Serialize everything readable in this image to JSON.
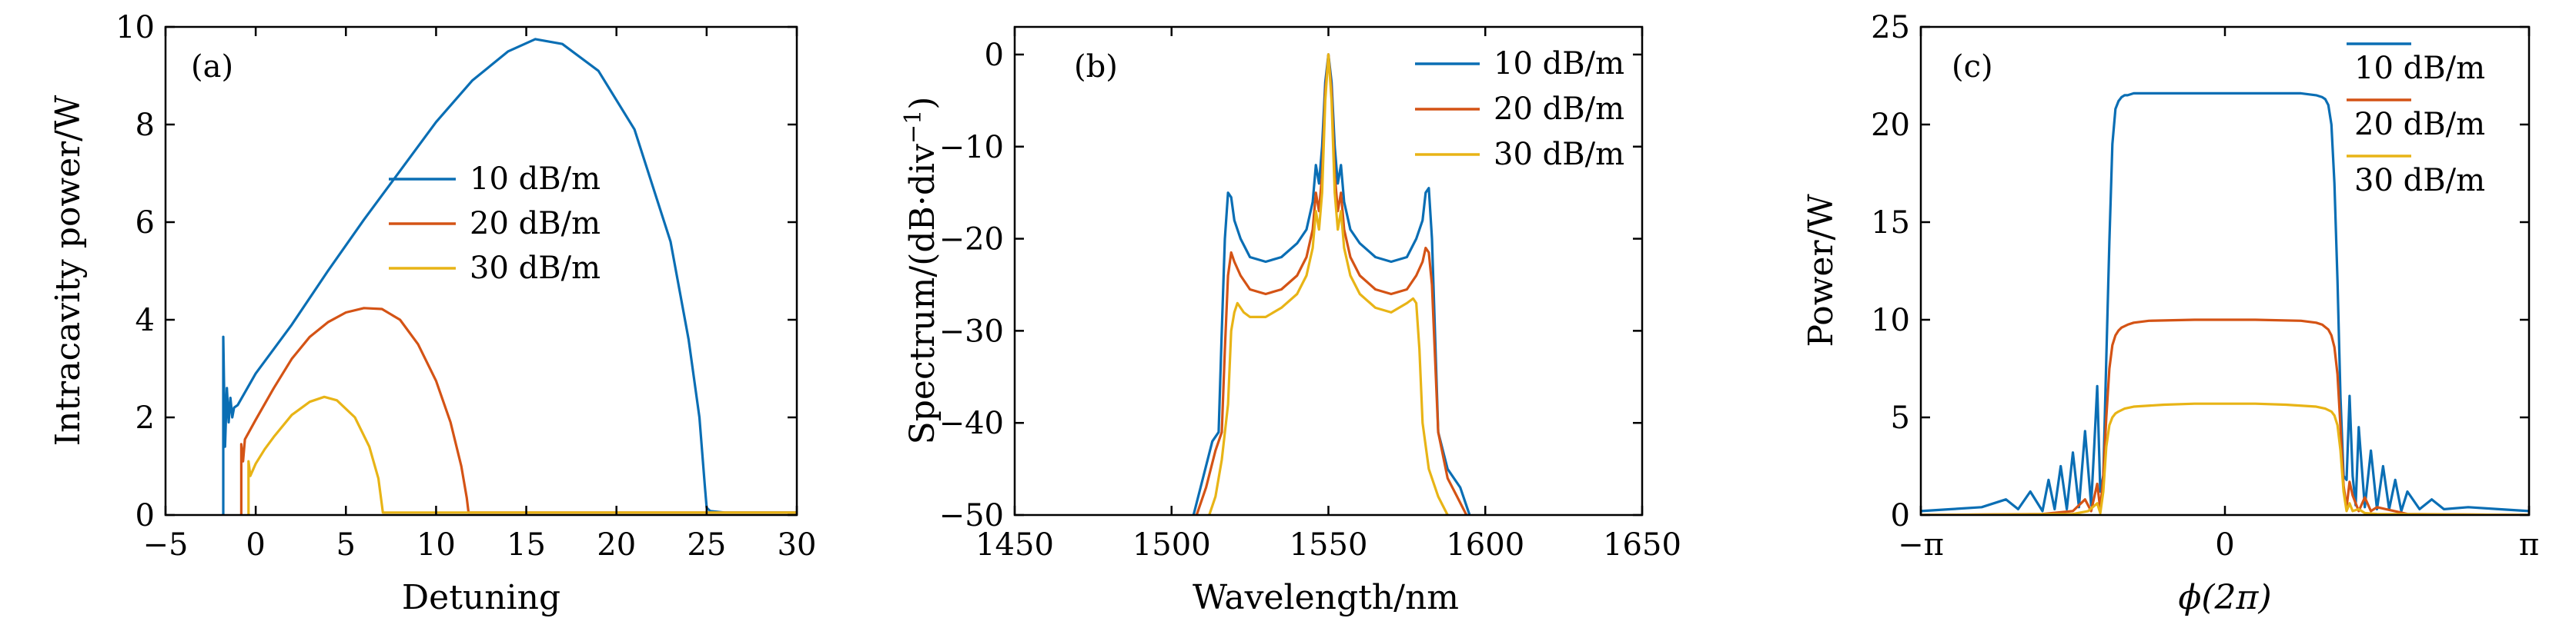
{
  "colors": {
    "s10": "#0a6eb4",
    "s20": "#d45315",
    "s30": "#e8b416"
  },
  "chart_data": [
    {
      "type": "line",
      "panel_label": "(a)",
      "xlabel": "Detuning",
      "ylabel": "Intracavity power/W",
      "xlim": [
        -5,
        30
      ],
      "ylim": [
        0,
        10
      ],
      "xticks": [
        -5,
        0,
        5,
        10,
        15,
        20,
        25,
        30
      ],
      "xtick_labels": [
        "−5",
        "0",
        "5",
        "10",
        "15",
        "20",
        "25",
        "30"
      ],
      "yticks": [
        0,
        2,
        4,
        6,
        8,
        10
      ],
      "ytick_labels": [
        "0",
        "2",
        "4",
        "6",
        "8",
        "10"
      ],
      "legend_placement": "center",
      "series": [
        {
          "name": "10 dB/m",
          "color_key": "s10",
          "x": [
            -1.8,
            -1.8,
            -1.7,
            -1.6,
            -1.5,
            -1.4,
            -1.3,
            -1.2,
            -1.0,
            0,
            2,
            4,
            6,
            8,
            10,
            12,
            14,
            15.5,
            17,
            19,
            21,
            23,
            24,
            24.6,
            24.9,
            25.0,
            25.2,
            26,
            30
          ],
          "y": [
            0,
            3.65,
            1.4,
            2.6,
            1.9,
            2.4,
            2.0,
            2.2,
            2.25,
            2.9,
            3.9,
            5.0,
            6.05,
            7.05,
            8.05,
            8.9,
            9.5,
            9.75,
            9.65,
            9.1,
            7.9,
            5.6,
            3.6,
            2.0,
            0.6,
            0.15,
            0.08,
            0.05,
            0.05
          ]
        },
        {
          "name": "20 dB/m",
          "color_key": "s20",
          "x": [
            -0.8,
            -0.8,
            -0.7,
            -0.6,
            0,
            1,
            2,
            3,
            4,
            5,
            6,
            7,
            8,
            9,
            10,
            10.8,
            11.4,
            11.7,
            11.8,
            12,
            30
          ],
          "y": [
            0,
            1.45,
            1.1,
            1.55,
            1.95,
            2.6,
            3.2,
            3.65,
            3.95,
            4.15,
            4.24,
            4.22,
            4.0,
            3.5,
            2.75,
            1.9,
            1.0,
            0.35,
            0.05,
            0.05,
            0.05
          ]
        },
        {
          "name": "30 dB/m",
          "color_key": "s30",
          "x": [
            -0.4,
            -0.4,
            -0.3,
            0,
            0.5,
            1,
            2,
            3,
            3.8,
            4.5,
            5.5,
            6.3,
            6.8,
            7.0,
            7.05,
            10,
            30
          ],
          "y": [
            0,
            1.1,
            0.8,
            1.05,
            1.35,
            1.6,
            2.05,
            2.32,
            2.42,
            2.35,
            2.0,
            1.4,
            0.75,
            0.2,
            0.05,
            0.05,
            0.05
          ]
        }
      ]
    },
    {
      "type": "line",
      "panel_label": "(b)",
      "xlabel": "Wavelength/nm",
      "ylabel": "Spectrum/(dB·div",
      "ylabel_superscript": "−1",
      "ylabel_close": ")",
      "xlim": [
        1450,
        1650
      ],
      "ylim": [
        -50,
        3
      ],
      "xticks": [
        1450,
        1500,
        1550,
        1600,
        1650
      ],
      "xtick_labels": [
        "1450",
        "1500",
        "1550",
        "1600",
        "1650"
      ],
      "yticks": [
        -50,
        -40,
        -30,
        -20,
        -10,
        0
      ],
      "ytick_labels": [
        "−50",
        "−40",
        "−30",
        "−20",
        "−10",
        "0"
      ],
      "legend_placement": "top-right",
      "series": [
        {
          "name": "10 dB/m",
          "color_key": "s10",
          "x": [
            1507,
            1510,
            1513,
            1515,
            1516,
            1517,
            1518,
            1519,
            1520,
            1522,
            1525,
            1530,
            1535,
            1540,
            1543,
            1545,
            1546,
            1547,
            1548,
            1549,
            1550,
            1551,
            1552,
            1553,
            1554,
            1555,
            1557,
            1560,
            1565,
            1570,
            1575,
            1578,
            1580,
            1581,
            1582,
            1583,
            1585,
            1588,
            1592,
            1595
          ],
          "y": [
            -50,
            -46,
            -42,
            -41,
            -30,
            -20,
            -15,
            -15.5,
            -18,
            -20,
            -22,
            -22.5,
            -22,
            -20.5,
            -19,
            -16,
            -12,
            -14,
            -10,
            -3,
            0,
            -3,
            -10,
            -14,
            -12,
            -16,
            -19,
            -20.5,
            -22,
            -22.5,
            -22,
            -20,
            -18,
            -15,
            -14.5,
            -20,
            -41,
            -45,
            -47,
            -50
          ]
        },
        {
          "name": "20 dB/m",
          "color_key": "s20",
          "x": [
            1508,
            1511,
            1514,
            1516,
            1517,
            1518,
            1519,
            1520,
            1522,
            1525,
            1530,
            1535,
            1540,
            1543,
            1545,
            1546,
            1547,
            1548,
            1549,
            1550,
            1551,
            1552,
            1553,
            1554,
            1555,
            1557,
            1560,
            1565,
            1570,
            1575,
            1578,
            1580,
            1581,
            1582,
            1583,
            1585,
            1588,
            1591,
            1594
          ],
          "y": [
            -50,
            -47,
            -43,
            -41,
            -32,
            -24,
            -21.5,
            -22.5,
            -24,
            -25.5,
            -26,
            -25.5,
            -24,
            -22,
            -19,
            -15,
            -17,
            -13,
            -4,
            0,
            -4,
            -13,
            -17,
            -15,
            -19,
            -22,
            -24,
            -25.5,
            -26,
            -25.5,
            -24,
            -22.5,
            -21,
            -21.5,
            -25,
            -41,
            -46,
            -48,
            -50
          ]
        },
        {
          "name": "30 dB/m",
          "color_key": "s30",
          "x": [
            1512,
            1514,
            1516,
            1518,
            1519,
            1520,
            1521,
            1523,
            1525,
            1530,
            1535,
            1540,
            1543,
            1545,
            1546,
            1547,
            1548,
            1549,
            1550,
            1551,
            1552,
            1553,
            1554,
            1555,
            1557,
            1560,
            1565,
            1570,
            1575,
            1577,
            1578,
            1579,
            1580,
            1582,
            1585,
            1588
          ],
          "y": [
            -50,
            -48,
            -44,
            -38,
            -30,
            -28,
            -27,
            -28,
            -28.5,
            -28.5,
            -27.5,
            -26,
            -24,
            -21,
            -17,
            -19,
            -15,
            -5,
            0,
            -5,
            -15,
            -19,
            -17,
            -21,
            -24,
            -26,
            -27.5,
            -28,
            -27,
            -26.5,
            -27,
            -32,
            -40,
            -45,
            -48,
            -50
          ]
        }
      ]
    },
    {
      "type": "line",
      "panel_label": "(c)",
      "xlabel": "ϕ(2π)",
      "ylabel": "Power/W",
      "xlim": [
        -1,
        1
      ],
      "ylim": [
        0,
        25
      ],
      "xticks": [
        -1,
        0,
        1
      ],
      "xtick_labels": [
        "−π",
        "0",
        "π"
      ],
      "yticks": [
        0,
        5,
        10,
        15,
        20,
        25
      ],
      "ytick_labels": [
        "0",
        "5",
        "10",
        "15",
        "20",
        "25"
      ],
      "legend_placement": "top-right",
      "series": [
        {
          "name": "10 dB/m",
          "color_key": "s10",
          "x": [
            -1,
            -0.9,
            -0.8,
            -0.72,
            -0.68,
            -0.64,
            -0.6,
            -0.58,
            -0.56,
            -0.54,
            -0.52,
            -0.5,
            -0.48,
            -0.46,
            -0.44,
            -0.43,
            -0.42,
            -0.41,
            -0.4,
            -0.39,
            -0.38,
            -0.37,
            -0.36,
            -0.35,
            -0.34,
            -0.33,
            -0.32,
            -0.3,
            -0.25,
            -0.15,
            0,
            0.15,
            0.25,
            0.3,
            0.32,
            0.33,
            0.34,
            0.35,
            0.36,
            0.37,
            0.38,
            0.39,
            0.4,
            0.41,
            0.42,
            0.43,
            0.44,
            0.46,
            0.48,
            0.5,
            0.52,
            0.54,
            0.56,
            0.58,
            0.6,
            0.64,
            0.68,
            0.72,
            0.8,
            0.9,
            1
          ],
          "y": [
            0.2,
            0.3,
            0.4,
            0.8,
            0.3,
            1.2,
            0.2,
            1.8,
            0.3,
            2.5,
            0.3,
            3.2,
            0.4,
            4.3,
            0.5,
            3.5,
            6.6,
            1.2,
            2,
            8,
            14,
            19,
            20.8,
            21.2,
            21.4,
            21.5,
            21.5,
            21.6,
            21.6,
            21.6,
            21.6,
            21.6,
            21.6,
            21.5,
            21.4,
            21.3,
            21,
            20,
            17,
            12,
            6,
            2,
            1.8,
            6.1,
            2,
            0.5,
            4.5,
            0.4,
            3.3,
            0.3,
            2.5,
            0.3,
            1.8,
            0.2,
            1.2,
            0.3,
            0.8,
            0.3,
            0.4,
            0.3,
            0.2
          ]
        },
        {
          "name": "20 dB/m",
          "color_key": "s20",
          "x": [
            -1,
            -0.6,
            -0.5,
            -0.46,
            -0.44,
            -0.42,
            -0.41,
            -0.4,
            -0.39,
            -0.38,
            -0.37,
            -0.36,
            -0.35,
            -0.34,
            -0.32,
            -0.3,
            -0.25,
            -0.1,
            0,
            0.1,
            0.25,
            0.3,
            0.32,
            0.34,
            0.35,
            0.36,
            0.37,
            0.38,
            0.39,
            0.4,
            0.41,
            0.42,
            0.44,
            0.46,
            0.48,
            0.5,
            0.6,
            1
          ],
          "y": [
            0,
            0.05,
            0.2,
            0.8,
            0.2,
            1.6,
            0.3,
            2,
            5,
            7.5,
            8.7,
            9.2,
            9.45,
            9.6,
            9.75,
            9.85,
            9.95,
            10,
            10,
            10,
            9.95,
            9.85,
            9.75,
            9.5,
            9.2,
            8.6,
            7.2,
            4.5,
            1.5,
            0.4,
            1.7,
            1.0,
            0.2,
            0.9,
            0.2,
            0.4,
            0.05,
            0
          ]
        },
        {
          "name": "30 dB/m",
          "color_key": "s30",
          "x": [
            -1,
            -0.5,
            -0.45,
            -0.42,
            -0.41,
            -0.4,
            -0.39,
            -0.38,
            -0.37,
            -0.36,
            -0.35,
            -0.33,
            -0.3,
            -0.2,
            -0.1,
            0,
            0.1,
            0.2,
            0.3,
            0.33,
            0.35,
            0.36,
            0.37,
            0.38,
            0.39,
            0.4,
            0.41,
            0.42,
            0.44,
            0.46,
            0.5,
            1
          ],
          "y": [
            0,
            0.05,
            0.2,
            0.6,
            0.1,
            1.2,
            3.5,
            4.6,
            5.0,
            5.2,
            5.3,
            5.45,
            5.55,
            5.65,
            5.7,
            5.7,
            5.7,
            5.65,
            5.55,
            5.45,
            5.3,
            5.1,
            4.6,
            3.3,
            1.2,
            0.2,
            0.6,
            0.2,
            0.3,
            0.1,
            0.05,
            0
          ]
        }
      ]
    }
  ]
}
